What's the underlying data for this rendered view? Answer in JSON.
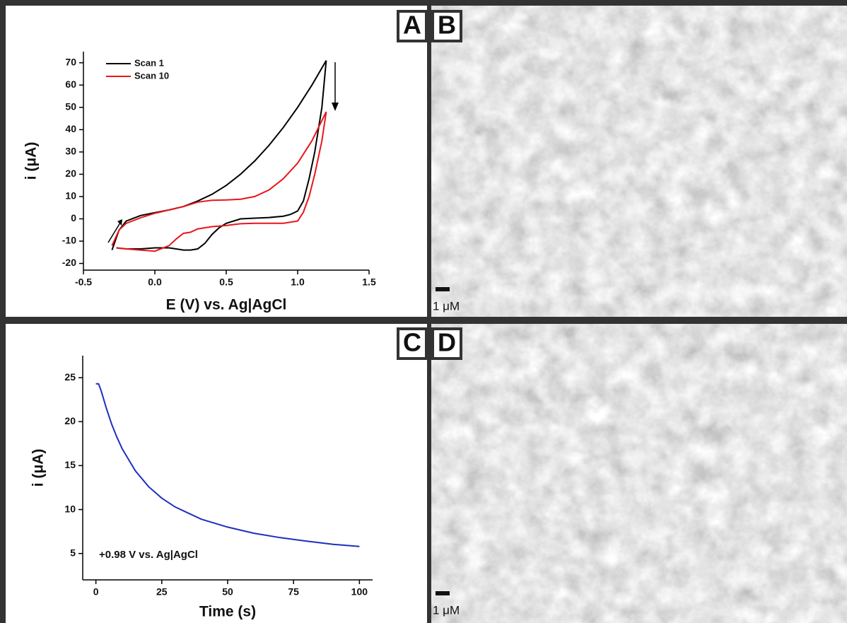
{
  "panels": {
    "labels": [
      "A",
      "B",
      "C",
      "D"
    ],
    "scale_bars": [
      "1 μM",
      "1 μM"
    ]
  },
  "chart_data": [
    {
      "type": "line",
      "x_label": "E (V) vs. Ag|AgCl",
      "y_label": "i (μA)",
      "legend": "upper left",
      "xlim": [
        -0.5,
        1.5
      ],
      "xticks": [
        -0.5,
        {
          "value": 0,
          "label": "0.0"
        },
        0.5,
        {
          "value": 1,
          "label": "1.0"
        },
        1.5
      ],
      "ylim": [
        -23,
        75
      ],
      "yticks": [
        -20,
        -10,
        0,
        10,
        20,
        30,
        40,
        50,
        60,
        70
      ],
      "series": [
        {
          "name": "Scan 1",
          "color": "#000000",
          "x": [
            -0.3,
            -0.25,
            -0.2,
            -0.1,
            0,
            0.1,
            0.2,
            0.3,
            0.4,
            0.5,
            0.6,
            0.7,
            0.8,
            0.9,
            1.0,
            1.1,
            1.2,
            1.17,
            1.12,
            1.08,
            1.04,
            1.0,
            0.95,
            0.9,
            0.8,
            0.7,
            0.6,
            0.5,
            0.45,
            0.4,
            0.35,
            0.3,
            0.25,
            0.2,
            0.1,
            0,
            -0.1,
            -0.2,
            -0.27
          ],
          "values": [
            -14,
            -5,
            -1,
            1.5,
            2.8,
            4,
            5.5,
            8,
            11,
            15,
            20,
            26,
            33,
            41,
            50,
            60,
            71,
            50,
            30,
            18,
            8,
            3.5,
            2,
            1.2,
            0.6,
            0.3,
            0,
            -2,
            -4,
            -7,
            -11,
            -13.5,
            -14,
            -14,
            -13,
            -13,
            -13.5,
            -13.5,
            -13
          ]
        },
        {
          "name": "Scan 10",
          "color": "#e8161b",
          "x": [
            -0.3,
            -0.25,
            -0.2,
            -0.1,
            0,
            0.1,
            0.2,
            0.3,
            0.4,
            0.5,
            0.6,
            0.7,
            0.8,
            0.9,
            1.0,
            1.1,
            1.2,
            1.17,
            1.12,
            1.08,
            1.04,
            1.0,
            0.9,
            0.8,
            0.7,
            0.6,
            0.5,
            0.4,
            0.3,
            0.25,
            0.2,
            0.15,
            0.1,
            0,
            -0.1,
            -0.2,
            -0.27
          ],
          "values": [
            -12,
            -5,
            -2,
            0.5,
            2.5,
            4,
            5.5,
            7.5,
            8.3,
            8.5,
            8.8,
            10,
            13,
            18,
            25,
            35,
            48,
            35,
            20,
            10,
            3,
            -1,
            -2,
            -2,
            -2,
            -2.2,
            -3,
            -3.5,
            -4.5,
            -6,
            -6.5,
            -9,
            -12,
            -14.5,
            -14,
            -13.5,
            -13
          ]
        }
      ]
    },
    {
      "type": "line",
      "x_label": "Time (s)",
      "y_label": "i (μA)",
      "annotation": "+0.98 V vs. Ag|AgCl",
      "xlim": [
        -5,
        105
      ],
      "xticks": [
        0,
        25,
        50,
        75,
        100
      ],
      "ylim": [
        2,
        27.5
      ],
      "yticks": [
        5,
        10,
        15,
        20,
        25
      ],
      "series": [
        {
          "color": "#1f2fbf",
          "x": [
            0,
            1,
            2,
            4,
            6,
            8,
            10,
            15,
            20,
            25,
            30,
            40,
            50,
            60,
            70,
            80,
            90,
            100
          ],
          "values": [
            24.3,
            24.3,
            23.5,
            21.5,
            19.7,
            18.2,
            16.9,
            14.4,
            12.6,
            11.3,
            10.3,
            8.9,
            8.0,
            7.3,
            6.8,
            6.4,
            6.05,
            5.8
          ]
        }
      ]
    }
  ]
}
